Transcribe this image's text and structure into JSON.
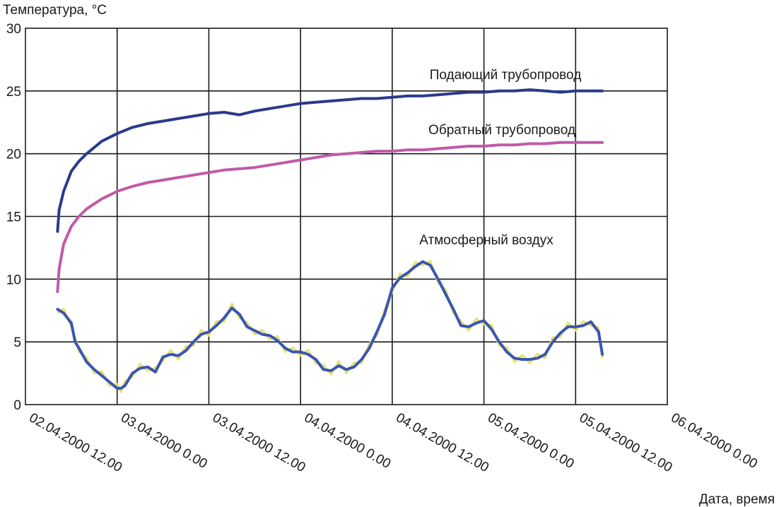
{
  "chart_data": {
    "type": "line",
    "title": "",
    "ylabel": "Температура, °C",
    "xlabel": "Дата, время",
    "ylim": [
      0,
      30
    ],
    "yticks": [
      "0",
      "5",
      "10",
      "15",
      "20",
      "25",
      "30"
    ],
    "xlim": [
      0,
      84
    ],
    "xticks": [
      {
        "x": 0,
        "label": "02.04.2000 12.00"
      },
      {
        "x": 12,
        "label": "03.04.2000 0.00"
      },
      {
        "x": 24,
        "label": "03.04.2000 12.00"
      },
      {
        "x": 36,
        "label": "04.04.2000 0.00"
      },
      {
        "x": 48,
        "label": "04.04.2000 12.00"
      },
      {
        "x": 60,
        "label": "05.04.2000 0.00"
      },
      {
        "x": 72,
        "label": "05.04.2000 12.00"
      },
      {
        "x": 84,
        "label": "06.04.2000 0.00"
      }
    ],
    "grid": true,
    "series": [
      {
        "name": "Подающий трубопровод",
        "color": "#2b3a8c",
        "x": [
          4.2,
          4.4,
          5,
          6,
          7,
          8,
          9,
          10,
          12,
          14,
          16,
          18,
          20,
          22,
          24,
          26,
          28,
          30,
          32,
          34,
          36,
          38,
          40,
          42,
          44,
          46,
          48,
          50,
          52,
          54,
          56,
          58,
          60,
          62,
          64,
          66,
          68,
          70,
          72,
          74,
          75.5
        ],
        "y": [
          13.8,
          15.5,
          17.0,
          18.6,
          19.4,
          20.0,
          20.5,
          21.0,
          21.6,
          22.1,
          22.4,
          22.6,
          22.8,
          23.0,
          23.2,
          23.3,
          23.1,
          23.4,
          23.6,
          23.8,
          24.0,
          24.1,
          24.2,
          24.3,
          24.4,
          24.4,
          24.5,
          24.6,
          24.6,
          24.7,
          24.8,
          24.9,
          24.9,
          25.0,
          25.0,
          25.1,
          25.0,
          24.9,
          25.0,
          25.0,
          25.0
        ]
      },
      {
        "name": "Обратный трубопровод",
        "color": "#c05aa8",
        "x": [
          4.2,
          4.4,
          5,
          6,
          7,
          8,
          9,
          10,
          12,
          14,
          16,
          18,
          20,
          22,
          24,
          26,
          28,
          30,
          32,
          34,
          36,
          38,
          40,
          42,
          44,
          46,
          48,
          50,
          52,
          54,
          56,
          58,
          60,
          62,
          64,
          66,
          68,
          70,
          72,
          74,
          75.5
        ],
        "y": [
          9.0,
          10.8,
          12.8,
          14.2,
          15.0,
          15.6,
          16.0,
          16.4,
          17.0,
          17.4,
          17.7,
          17.9,
          18.1,
          18.3,
          18.5,
          18.7,
          18.8,
          18.9,
          19.1,
          19.3,
          19.5,
          19.7,
          19.9,
          20.0,
          20.1,
          20.2,
          20.2,
          20.3,
          20.3,
          20.4,
          20.5,
          20.6,
          20.6,
          20.7,
          20.7,
          20.8,
          20.8,
          20.9,
          20.9,
          20.9,
          20.9
        ]
      },
      {
        "name": "Атмосферный воздух",
        "color": "#3a56b0",
        "raw_color": "#e8e070",
        "x": [
          4.2,
          5,
          6,
          6.5,
          7,
          8,
          9,
          10,
          11,
          12,
          12.5,
          13,
          14,
          15,
          16,
          17,
          18,
          19,
          20,
          21,
          22,
          23,
          24,
          25,
          26,
          27,
          28,
          29,
          30,
          31,
          32,
          33,
          34,
          35,
          36,
          37,
          38,
          39,
          40,
          41,
          42,
          43,
          44,
          45,
          46,
          47,
          48,
          49,
          50,
          51,
          52,
          53,
          54,
          55,
          56,
          57,
          58,
          59,
          60,
          61,
          62,
          63,
          64,
          65,
          66,
          67,
          68,
          69,
          70,
          71,
          72,
          73,
          74,
          75,
          75.5
        ],
        "y": [
          7.6,
          7.3,
          6.5,
          5.0,
          4.5,
          3.4,
          2.8,
          2.3,
          1.8,
          1.3,
          1.3,
          1.5,
          2.5,
          2.9,
          3.0,
          2.6,
          3.8,
          4.0,
          3.9,
          4.3,
          5.0,
          5.6,
          5.8,
          6.3,
          6.9,
          7.7,
          7.2,
          6.2,
          5.9,
          5.6,
          5.5,
          5.1,
          4.5,
          4.2,
          4.2,
          4.0,
          3.6,
          2.8,
          2.7,
          3.1,
          2.8,
          3.0,
          3.6,
          4.5,
          5.8,
          7.2,
          9.3,
          10.1,
          10.5,
          11.0,
          11.4,
          11.1,
          10.0,
          8.8,
          7.6,
          6.3,
          6.2,
          6.5,
          6.7,
          6.0,
          5.0,
          4.2,
          3.7,
          3.6,
          3.6,
          3.7,
          4.0,
          5.0,
          5.7,
          6.2,
          6.2,
          6.3,
          6.6,
          5.8,
          4.0
        ]
      }
    ]
  }
}
